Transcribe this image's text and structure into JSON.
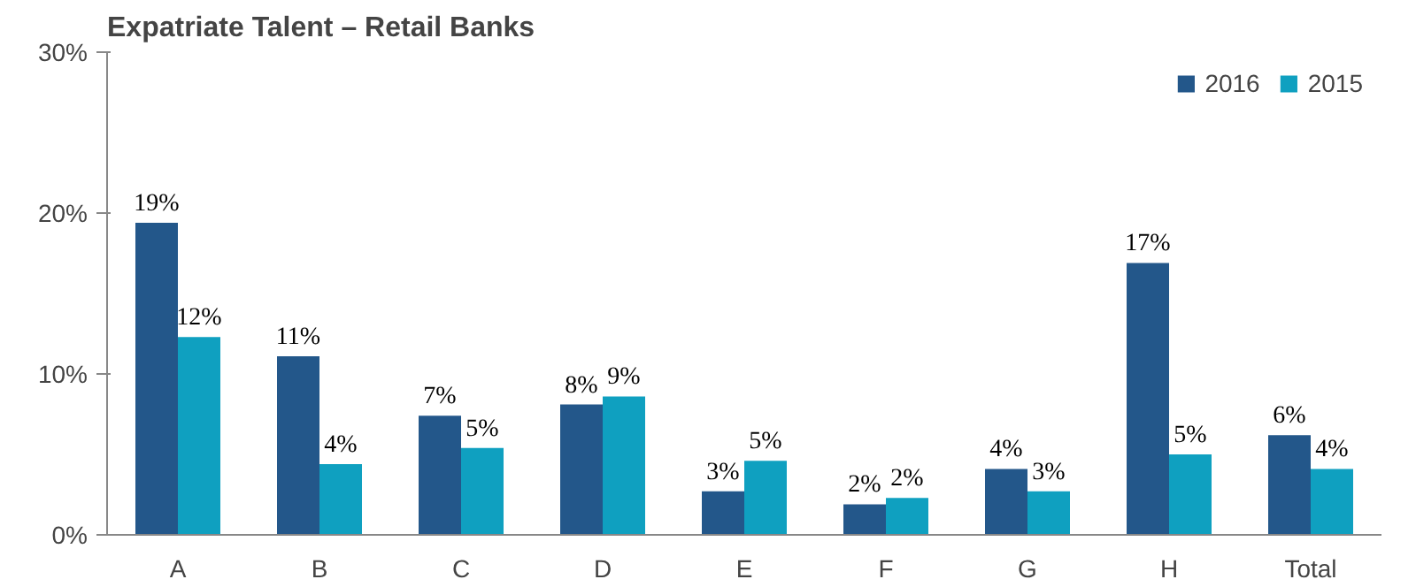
{
  "chart_data": {
    "type": "bar",
    "title": "Expatriate Talent – Retail Banks",
    "categories": [
      "A",
      "B",
      "C",
      "D",
      "E",
      "F",
      "G",
      "H",
      "Total"
    ],
    "series": [
      {
        "name": "2016",
        "color": "#23578a",
        "values": [
          19.4,
          11.1,
          7.4,
          8.1,
          2.7,
          1.9,
          4.1,
          16.9,
          6.2
        ],
        "value_labels": [
          "19%",
          "11%",
          "7%",
          "8%",
          "3%",
          "2%",
          "4%",
          "17%",
          "6%"
        ]
      },
      {
        "name": "2015",
        "color": "#0fa0c0",
        "values": [
          12.3,
          4.4,
          5.4,
          8.6,
          4.6,
          2.3,
          2.7,
          5.0,
          4.1
        ],
        "value_labels": [
          "12%",
          "4%",
          "5%",
          "9%",
          "5%",
          "2%",
          "3%",
          "5%",
          "4%"
        ]
      }
    ],
    "ylim": [
      0,
      30
    ],
    "yticks": [
      {
        "value": 0,
        "label": "0%"
      },
      {
        "value": 10,
        "label": "10%"
      },
      {
        "value": 20,
        "label": "20%"
      },
      {
        "value": 30,
        "label": "30%"
      }
    ],
    "grid": false,
    "legend": "top right"
  }
}
